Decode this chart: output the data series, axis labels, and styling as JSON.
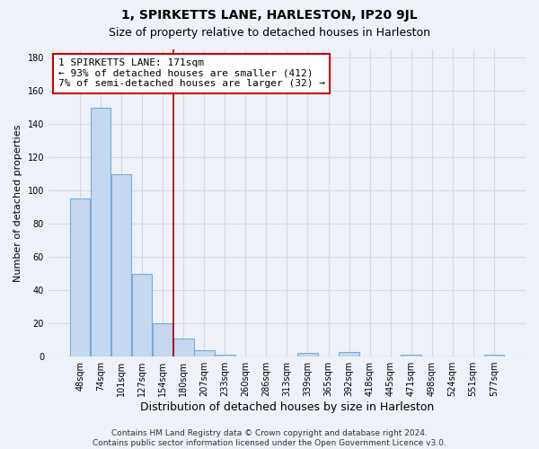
{
  "title": "1, SPIRKETTS LANE, HARLESTON, IP20 9JL",
  "subtitle": "Size of property relative to detached houses in Harleston",
  "xlabel": "Distribution of detached houses by size in Harleston",
  "ylabel": "Number of detached properties",
  "bar_labels": [
    "48sqm",
    "74sqm",
    "101sqm",
    "127sqm",
    "154sqm",
    "180sqm",
    "207sqm",
    "233sqm",
    "260sqm",
    "286sqm",
    "313sqm",
    "339sqm",
    "365sqm",
    "392sqm",
    "418sqm",
    "445sqm",
    "471sqm",
    "498sqm",
    "524sqm",
    "551sqm",
    "577sqm"
  ],
  "bar_values": [
    95,
    150,
    110,
    50,
    20,
    11,
    4,
    1,
    0,
    0,
    0,
    2,
    0,
    3,
    0,
    0,
    1,
    0,
    0,
    0,
    1
  ],
  "bar_color": "#c5d8f0",
  "bar_edge_color": "#7aadd4",
  "vline_color": "#aa0000",
  "annotation_line1": "1 SPIRKETTS LANE: 171sqm",
  "annotation_line2": "← 93% of detached houses are smaller (412)",
  "annotation_line3": "7% of semi-detached houses are larger (32) →",
  "annotation_box_color": "#ffffff",
  "annotation_box_edge": "#cc0000",
  "ylim": [
    0,
    185
  ],
  "yticks": [
    0,
    20,
    40,
    60,
    80,
    100,
    120,
    140,
    160,
    180
  ],
  "footer_line1": "Contains HM Land Registry data © Crown copyright and database right 2024.",
  "footer_line2": "Contains public sector information licensed under the Open Government Licence v3.0.",
  "background_color": "#eef2f8",
  "plot_background": "#eef2f8",
  "grid_color": "#d0d8e8",
  "title_fontsize": 10,
  "subtitle_fontsize": 9,
  "xlabel_fontsize": 9,
  "ylabel_fontsize": 8,
  "tick_fontsize": 7,
  "annotation_fontsize": 8,
  "footer_fontsize": 6.5
}
